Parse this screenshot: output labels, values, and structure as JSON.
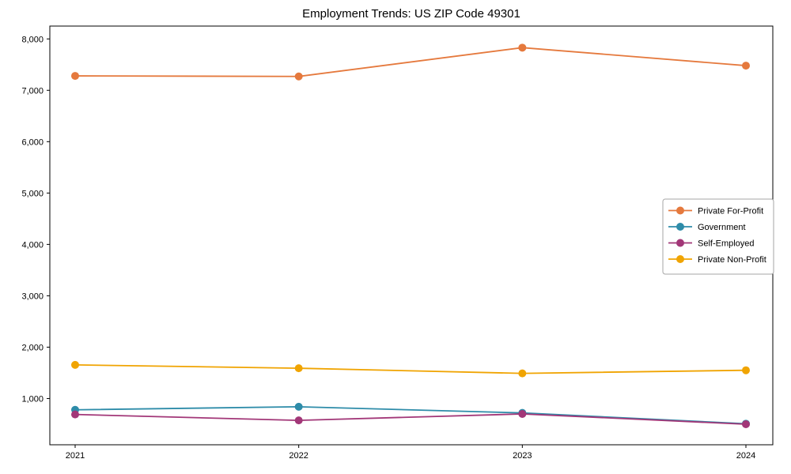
{
  "figure": {
    "background_color": "#ffffff"
  },
  "chart_data": {
    "type": "line",
    "title": "Employment Trends: US ZIP Code 49301",
    "x_categories": [
      "2021",
      "2022",
      "2023",
      "2024"
    ],
    "series": [
      {
        "name": "Private For-Profit",
        "color": "#e5793d",
        "values": [
          7280,
          7270,
          7830,
          7480
        ]
      },
      {
        "name": "Government",
        "color": "#2e8ca9",
        "values": [
          780,
          840,
          720,
          510
        ]
      },
      {
        "name": "Self-Employed",
        "color": "#a23778",
        "values": [
          690,
          575,
          700,
          500
        ]
      },
      {
        "name": "Private Non-Profit",
        "color": "#f0a402",
        "values": [
          1655,
          1590,
          1490,
          1550
        ]
      }
    ],
    "yticks": [
      1000,
      2000,
      3000,
      4000,
      5000,
      6000,
      7000,
      8000
    ],
    "ytick_labels": [
      "1,000",
      "2,000",
      "3,000",
      "4,000",
      "5,000",
      "6,000",
      "7,000",
      "8,000"
    ],
    "ylim": [
      100,
      8250
    ],
    "grid": false,
    "marker": "circle",
    "axis_color": "#000000",
    "tick_label_color": "#000000",
    "legend": {
      "position": "center-right",
      "border_color": "#a6a6a6",
      "entries": [
        "Private For-Profit",
        "Government",
        "Self-Employed",
        "Private Non-Profit"
      ]
    }
  }
}
